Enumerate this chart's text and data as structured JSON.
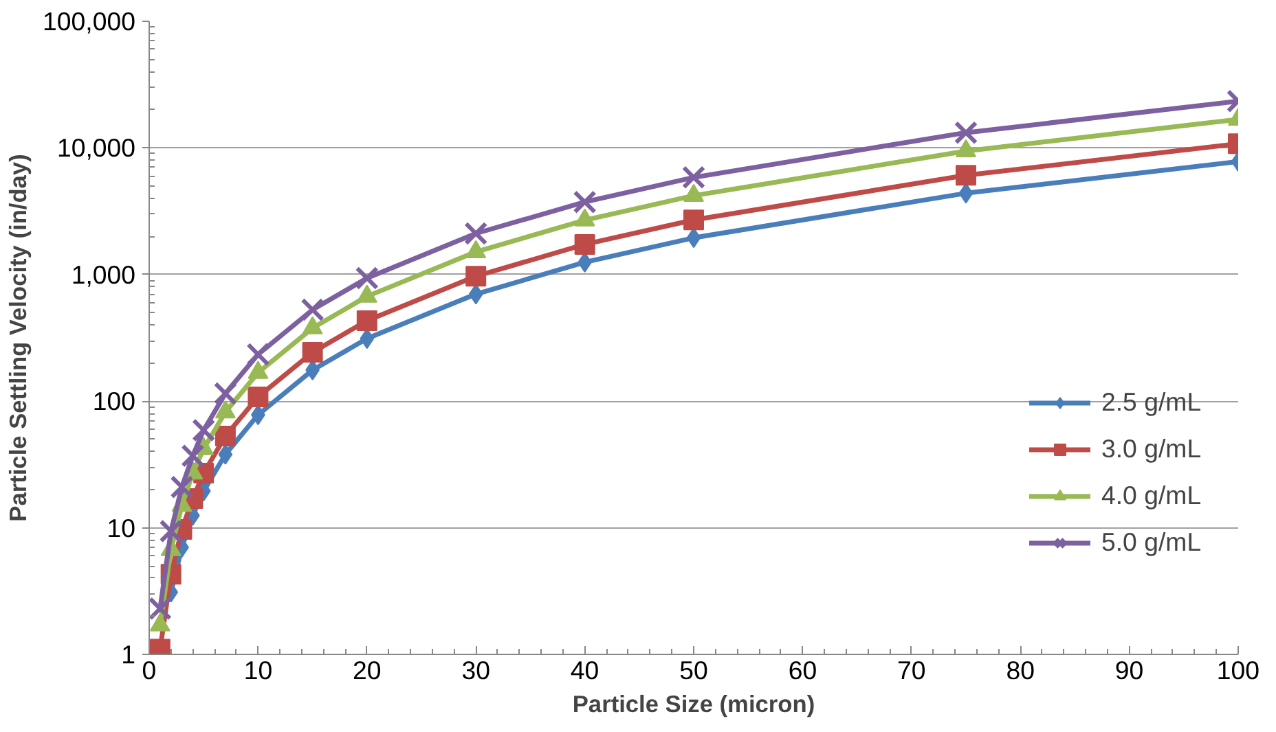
{
  "chart_data": {
    "type": "line",
    "xlabel": "Particle Size (micron)",
    "ylabel": "Particle Settling Velocity (in/day)",
    "x": [
      1,
      2,
      3,
      4,
      5,
      7,
      10,
      15,
      20,
      30,
      40,
      50,
      75,
      100
    ],
    "series": [
      {
        "name": "2.5 g/mL",
        "color": "#4a7ebb",
        "marker": "diamond",
        "values": [
          null,
          3.1,
          7.0,
          12.5,
          19.5,
          38,
          78,
          176,
          312,
          700,
          1250,
          1950,
          4390,
          7800
        ]
      },
      {
        "name": "3.0 g/mL",
        "color": "#be4b48",
        "marker": "square",
        "values": [
          1.1,
          4.3,
          9.7,
          17,
          27,
          53,
          108,
          243,
          432,
          970,
          1730,
          2700,
          6080,
          10800
        ]
      },
      {
        "name": "4.0 g/mL",
        "color": "#98b954",
        "marker": "triangle",
        "values": [
          1.7,
          6.7,
          15,
          27,
          42,
          82,
          168,
          378,
          672,
          1510,
          2690,
          4200,
          9450,
          16800
        ]
      },
      {
        "name": "5.0 g/mL",
        "color": "#7d60a0",
        "marker": "cross",
        "values": [
          2.3,
          9.4,
          21,
          37,
          59,
          115,
          234,
          527,
          936,
          2110,
          3740,
          5850,
          13200,
          23400
        ]
      }
    ],
    "xlim": [
      0,
      100
    ],
    "xticks": [
      0,
      10,
      20,
      30,
      40,
      50,
      60,
      70,
      80,
      90,
      100
    ],
    "ylim": [
      1,
      100000
    ],
    "log": true,
    "yticks": [
      {
        "value": 1,
        "label": "1"
      },
      {
        "value": 10,
        "label": "10"
      },
      {
        "value": 100,
        "label": "100"
      },
      {
        "value": 1000,
        "label": "1,000"
      },
      {
        "value": 10000,
        "label": "10,000"
      },
      {
        "value": 100000,
        "label": "100,000"
      }
    ],
    "grid": "y",
    "legend": "right"
  }
}
